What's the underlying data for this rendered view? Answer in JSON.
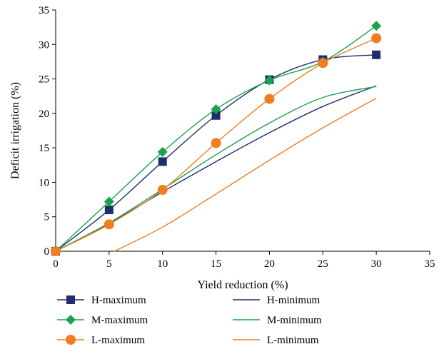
{
  "chart_data": {
    "type": "line",
    "xlabel": "Yield reduction (%)",
    "ylabel": "Deficit irrigation (%)",
    "xlim": [
      0,
      35
    ],
    "ylim": [
      0,
      35
    ],
    "xticks": [
      0,
      5,
      10,
      15,
      20,
      25,
      30,
      35
    ],
    "yticks": [
      0,
      5,
      10,
      15,
      20,
      25,
      30,
      35
    ],
    "grid": false,
    "legend_position": "bottom",
    "series": [
      {
        "name": "H-maximum",
        "color": "#1f2d6e",
        "marker": "square",
        "x": [
          0,
          5,
          10,
          15,
          20,
          25,
          30
        ],
        "y": [
          0,
          6.0,
          13.0,
          19.7,
          24.9,
          27.8,
          28.5
        ]
      },
      {
        "name": "M-maximum",
        "color": "#1aa34a",
        "marker": "diamond",
        "x": [
          0,
          5,
          10,
          15,
          20,
          25,
          30
        ],
        "y": [
          0,
          7.2,
          14.4,
          20.6,
          24.8,
          27.5,
          32.7
        ]
      },
      {
        "name": "L-maximum",
        "color": "#f07d22",
        "marker": "circle",
        "x": [
          0,
          5,
          10,
          15,
          20,
          25,
          30
        ],
        "y": [
          0,
          3.9,
          8.9,
          15.7,
          22.1,
          27.3,
          30.9
        ]
      },
      {
        "name": "H-minimum",
        "color": "#1f2d6e",
        "marker": "none",
        "x": [
          0,
          5,
          10,
          15,
          20,
          25,
          30
        ],
        "y": [
          0,
          4.0,
          8.6,
          13.0,
          17.2,
          21.0,
          24.0
        ]
      },
      {
        "name": "M-minimum",
        "color": "#1aa34a",
        "marker": "none",
        "x": [
          0,
          5,
          10,
          15,
          20,
          25,
          30
        ],
        "y": [
          0,
          4.1,
          9.0,
          14.0,
          18.6,
          22.3,
          23.9
        ]
      },
      {
        "name": "L-minimum",
        "color": "#f07d22",
        "marker": "none",
        "x": [
          5.5,
          10,
          15,
          20,
          25,
          30
        ],
        "y": [
          0,
          3.5,
          8.3,
          13.2,
          17.9,
          22.2
        ]
      }
    ]
  }
}
